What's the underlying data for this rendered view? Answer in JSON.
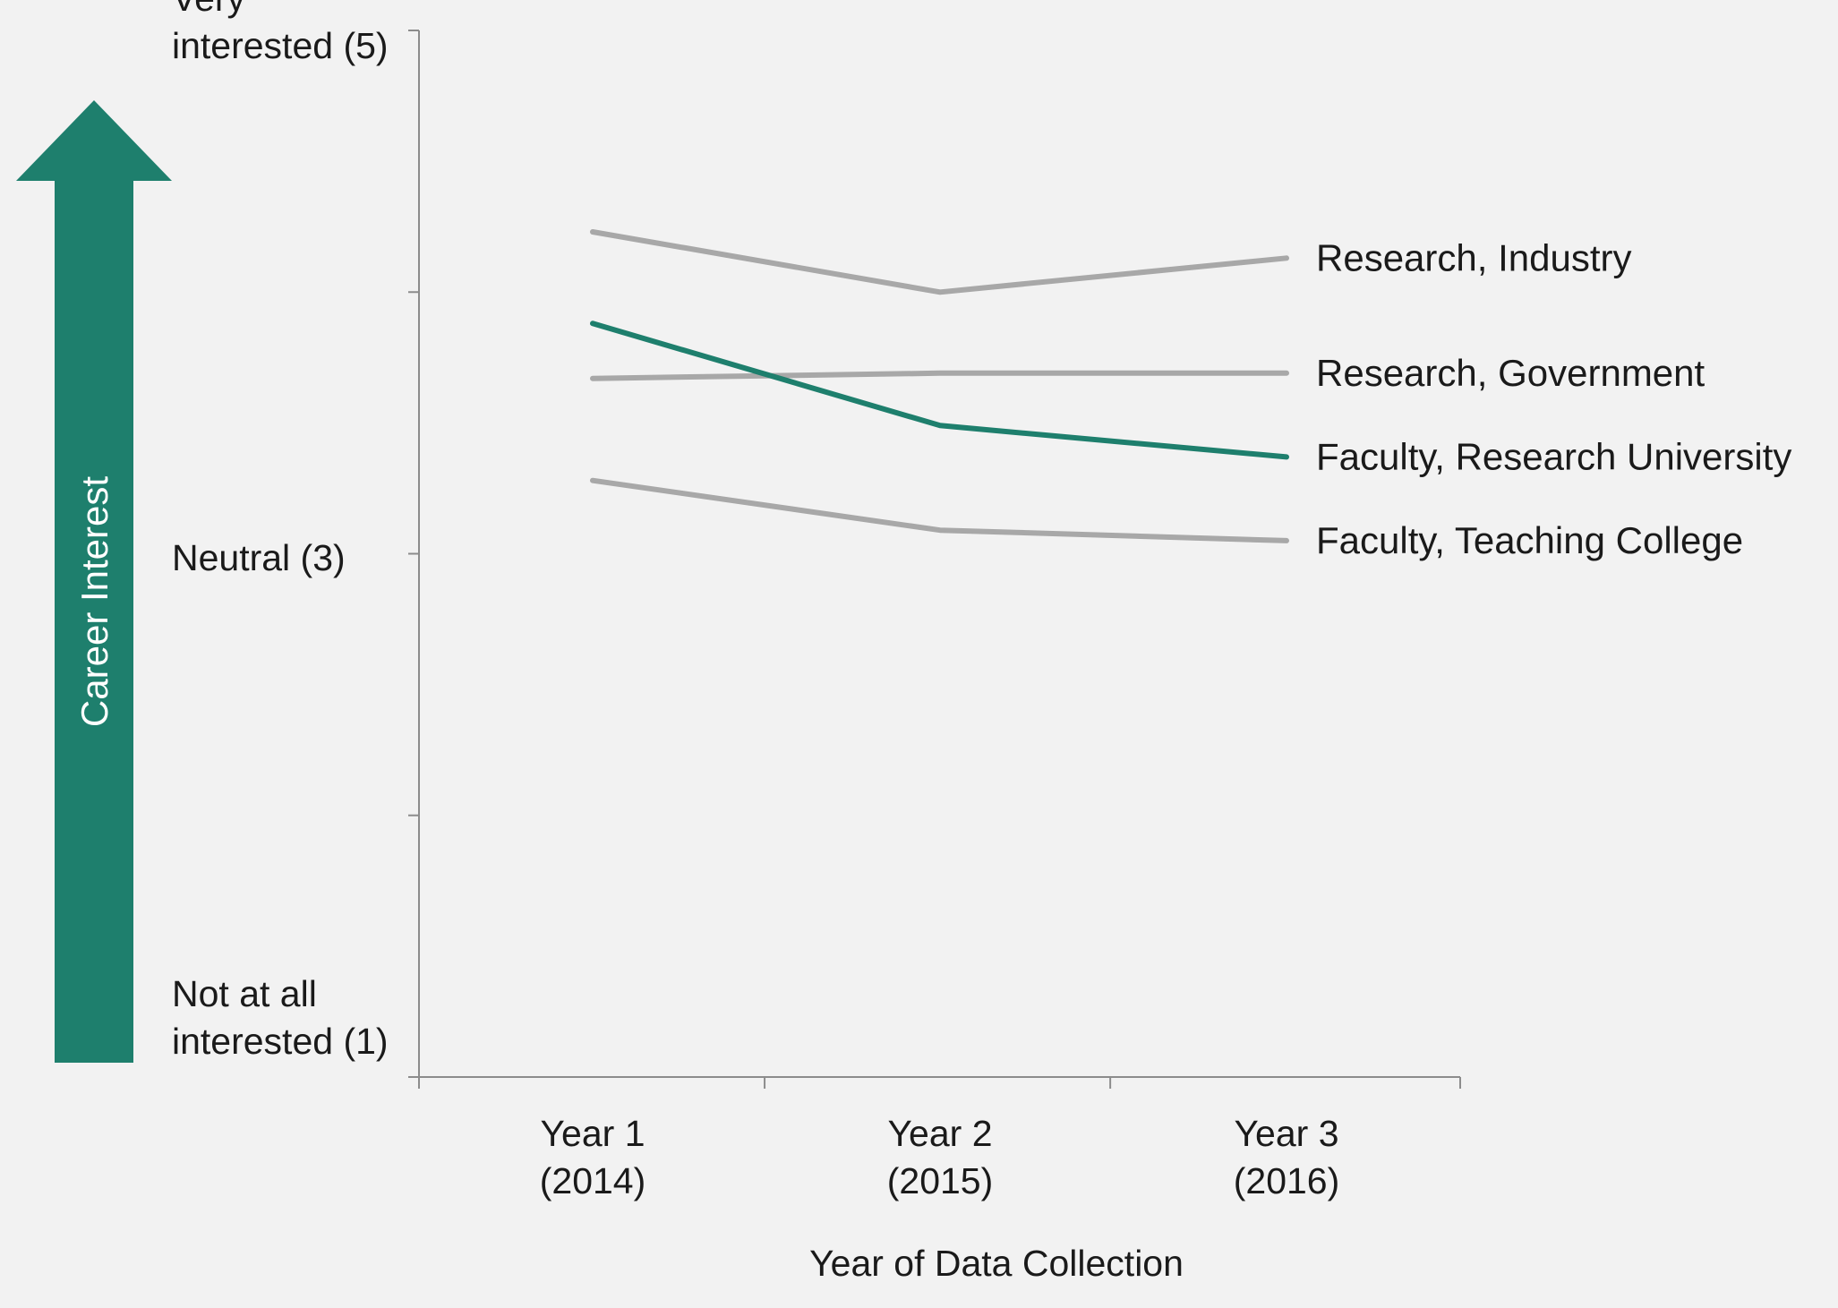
{
  "colors": {
    "highlight": "#1e7f6d",
    "muted": "#a8a8a8",
    "arrow": "#1e7f6d",
    "axis": "#8c8c8c"
  },
  "chart_data": {
    "type": "line",
    "xlabel": "Year of Data Collection",
    "ylabel": "Career Interest",
    "categories": [
      [
        "Year 1",
        "(2014)"
      ],
      [
        "Year 2",
        "(2015)"
      ],
      [
        "Year 3",
        "(2016)"
      ]
    ],
    "ylim": [
      1,
      5
    ],
    "y_tick_values": [
      1,
      2,
      3,
      4,
      5
    ],
    "y_tick_labels": [
      {
        "value": 5,
        "lines": [
          "Very",
          "interested (5)"
        ]
      },
      {
        "value": 3,
        "lines": [
          "Neutral (3)"
        ]
      },
      {
        "value": 1,
        "lines": [
          "Not at all",
          "interested (1)"
        ]
      }
    ],
    "series": [
      {
        "name": "Research, Industry",
        "values": [
          4.23,
          4.0,
          4.13
        ],
        "highlight": false
      },
      {
        "name": "Research, Government",
        "values": [
          3.67,
          3.69,
          3.69
        ],
        "highlight": false
      },
      {
        "name": "Faculty, Research University",
        "values": [
          3.88,
          3.49,
          3.37
        ],
        "highlight": true
      },
      {
        "name": "Faculty, Teaching College",
        "values": [
          3.28,
          3.09,
          3.05
        ],
        "highlight": false
      }
    ]
  }
}
